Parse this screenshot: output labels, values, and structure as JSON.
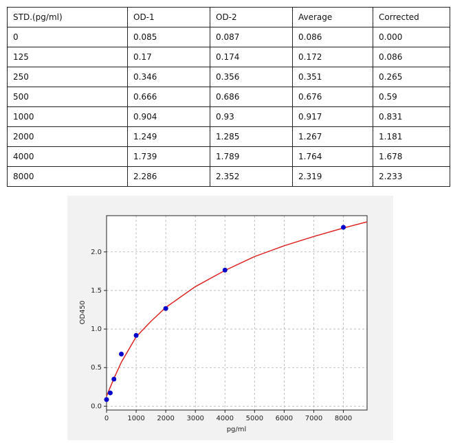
{
  "table": {
    "header": [
      "STD.(pg/ml)",
      "OD-1",
      "OD-2",
      "Average",
      "Corrected"
    ],
    "rows": [
      [
        "0",
        "0.085",
        "0.087",
        "0.086",
        "0.000"
      ],
      [
        "125",
        "0.17",
        "0.174",
        "0.172",
        "0.086"
      ],
      [
        "250",
        "0.346",
        "0.356",
        "0.351",
        "0.265"
      ],
      [
        "500",
        "0.666",
        "0.686",
        "0.676",
        "0.59"
      ],
      [
        "1000",
        "0.904",
        "0.93",
        "0.917",
        "0.831"
      ],
      [
        "2000",
        "1.249",
        "1.285",
        "1.267",
        "1.181"
      ],
      [
        "4000",
        "1.739",
        "1.789",
        "1.764",
        "1.678"
      ],
      [
        "8000",
        "2.286",
        "2.352",
        "2.319",
        "2.233"
      ]
    ]
  },
  "chart_data": {
    "type": "scatter",
    "x_label": "pg/ml",
    "y_label": "OD450",
    "xlim": [
      0,
      8800
    ],
    "ylim": [
      -0.05,
      2.47
    ],
    "xticks": [
      0,
      1000,
      2000,
      3000,
      4000,
      5000,
      6000,
      7000,
      8000
    ],
    "yticks": [
      {
        "value": 0,
        "label": "0.0"
      },
      {
        "value": 0.5,
        "label": "0.5"
      },
      {
        "value": 1,
        "label": "1.0"
      },
      {
        "value": 1.5,
        "label": "1.5"
      },
      {
        "value": 2,
        "label": "2.0"
      }
    ],
    "grid": true,
    "series": [
      {
        "type": "scatter",
        "color": "#0000cc",
        "x": [
          0,
          125,
          250,
          500,
          1000,
          2000,
          4000,
          8000
        ],
        "values": [
          0.086,
          0.172,
          0.351,
          0.676,
          0.917,
          1.267,
          1.764,
          2.319
        ]
      },
      {
        "type": "line",
        "color": "#dd2222",
        "x": [
          0,
          250,
          500,
          1000,
          1500,
          2000,
          3000,
          4000,
          5000,
          6000,
          7000,
          8000,
          8800
        ],
        "values": [
          0.13,
          0.36,
          0.57,
          0.9,
          1.1,
          1.28,
          1.55,
          1.76,
          1.94,
          2.08,
          2.2,
          2.31,
          2.39
        ]
      }
    ]
  }
}
